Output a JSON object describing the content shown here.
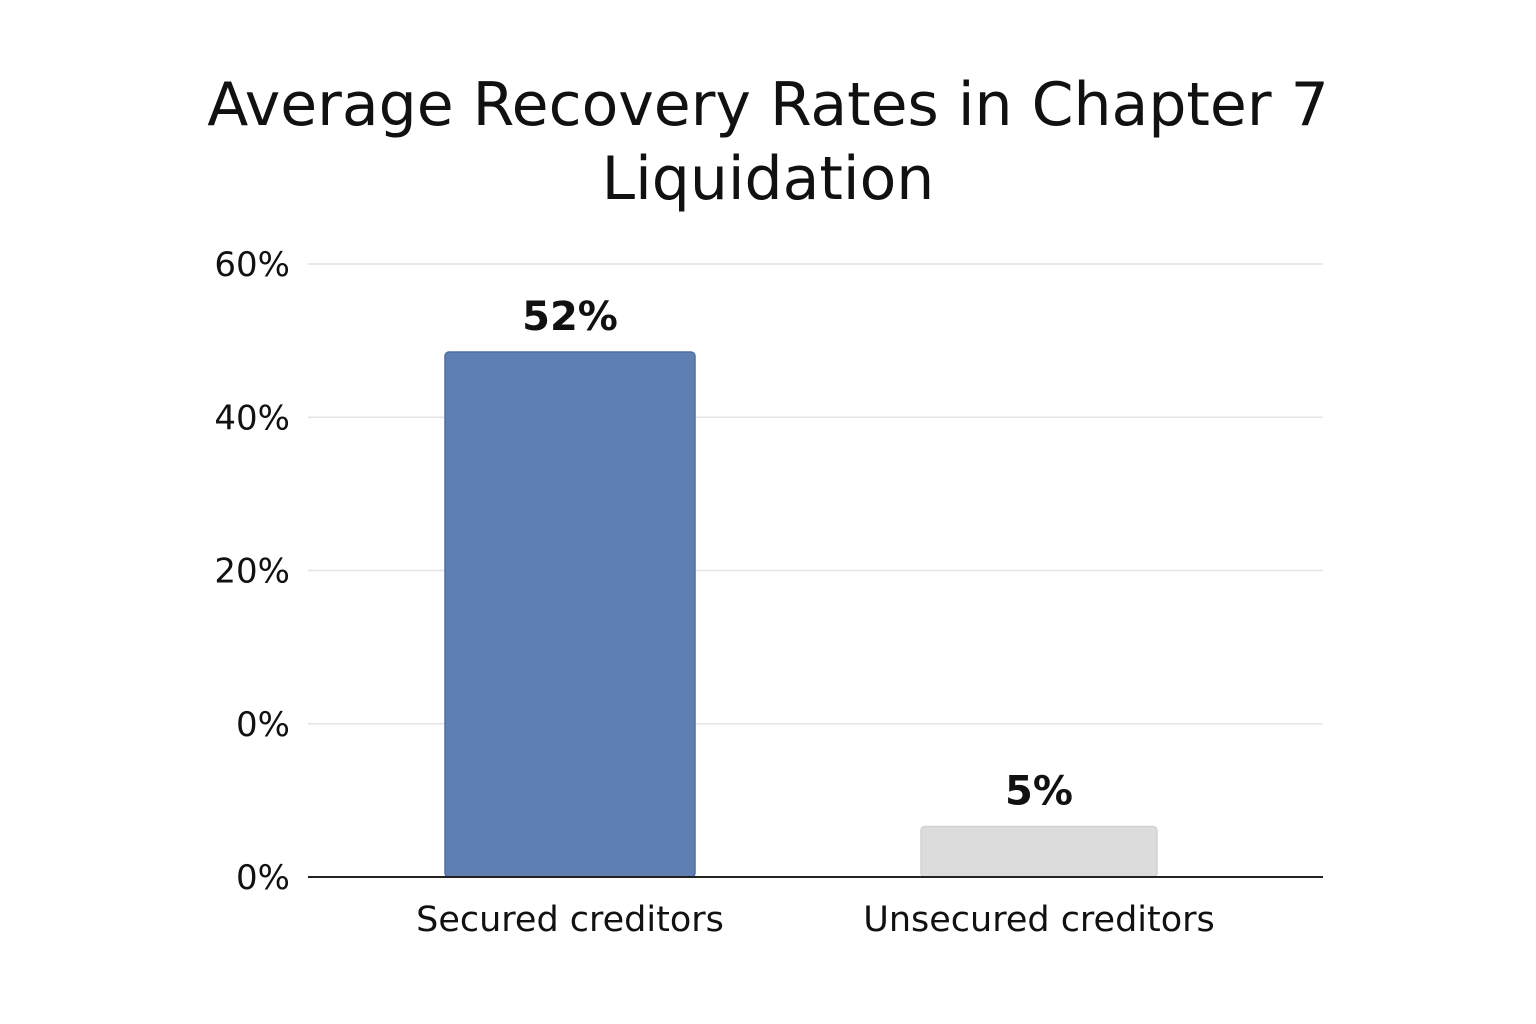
{
  "chart_data": {
    "type": "bar",
    "title_lines": [
      "Average Recovery Rates in Chapter 7",
      "Liquidation"
    ],
    "categories": [
      "Secured creditors",
      "Unsecured creditors"
    ],
    "values": [
      52,
      5
    ],
    "value_labels": [
      "52%",
      "5%"
    ],
    "y_tick_labels": [
      "60%",
      "40%",
      "20%",
      "0%",
      "0%"
    ],
    "ylim": [
      0,
      60
    ],
    "grid": true,
    "bar_colors": [
      "#5f7fb3",
      "#dcdcdc"
    ]
  }
}
